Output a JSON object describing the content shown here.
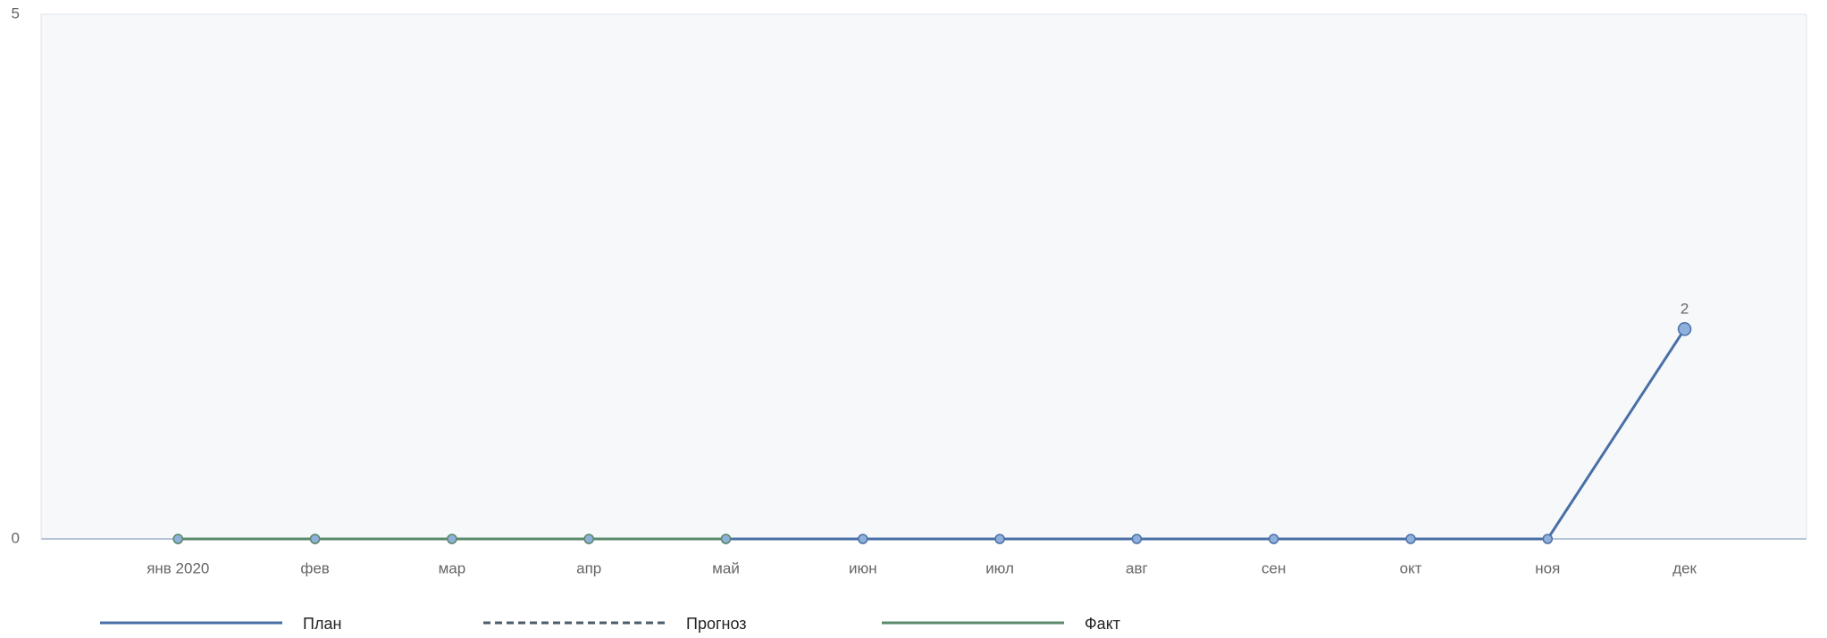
{
  "chart_data": {
    "type": "line",
    "categories": [
      "янв 2020",
      "фев",
      "мар",
      "апр",
      "май",
      "июн",
      "июл",
      "авг",
      "сен",
      "окт",
      "ноя",
      "дек"
    ],
    "series": [
      {
        "name": "План",
        "color": "#4a6fa5",
        "dash": false,
        "values": [
          0,
          0,
          0,
          0,
          0,
          0,
          0,
          0,
          0,
          0,
          0,
          2
        ],
        "value_labels": [
          null,
          null,
          null,
          null,
          null,
          null,
          null,
          null,
          null,
          null,
          null,
          "2"
        ]
      },
      {
        "name": "Прогноз",
        "color": "#4d5d6b",
        "dash": true,
        "values": [
          null,
          null,
          null,
          null,
          null,
          null,
          null,
          null,
          null,
          null,
          null,
          null
        ]
      },
      {
        "name": "Факт",
        "color": "#5b8a6b",
        "dash": false,
        "values": [
          0,
          0,
          0,
          0,
          0,
          null,
          null,
          null,
          null,
          null,
          null,
          null
        ]
      }
    ],
    "ylim": [
      0,
      5
    ],
    "yticks": [
      0,
      5
    ],
    "grid": true
  }
}
